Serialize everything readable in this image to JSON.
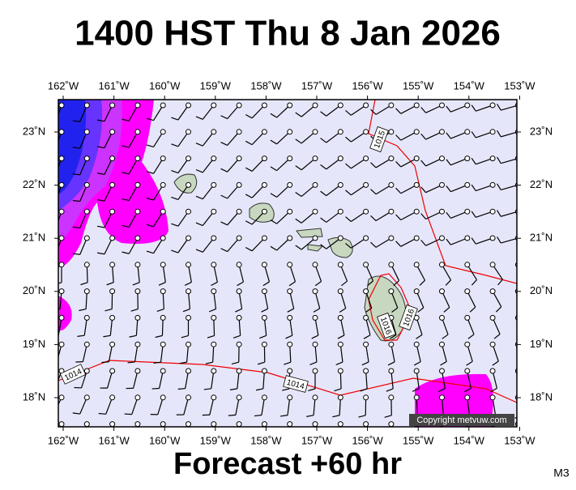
{
  "header": {
    "title": "1400 HST Thu 8 Jan 2026"
  },
  "footer": {
    "title": "Forecast +60 hr",
    "code": "M3"
  },
  "map": {
    "lon_labels": [
      "162˚W",
      "161˚W",
      "160˚W",
      "159˚W",
      "158˚W",
      "157˚W",
      "156˚W",
      "155˚W",
      "154˚W",
      "153˚W"
    ],
    "lat_labels": [
      "23˚N",
      "22˚N",
      "21˚N",
      "20˚N",
      "19˚N",
      "18˚N"
    ],
    "isobar_labels": [
      "1015",
      "1014",
      "1014",
      "1016",
      "1016"
    ],
    "copyright": "Copyright metvuw.com"
  }
}
